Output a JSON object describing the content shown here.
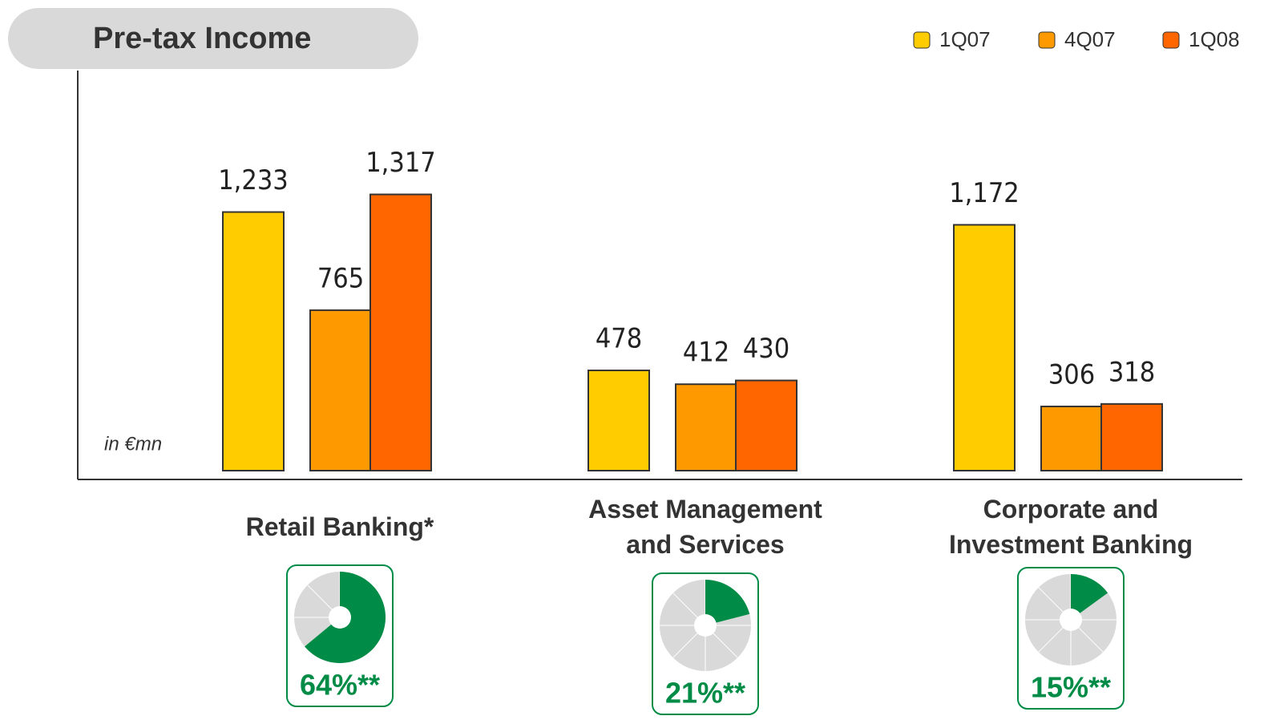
{
  "chart_data": {
    "type": "bar",
    "title": "Pre-tax Income",
    "unit_note": "in €mn",
    "categories": [
      "Retail Banking*",
      "Asset Management and Services",
      "Corporate and Investment Banking"
    ],
    "series": [
      {
        "name": "1Q07",
        "color": "#ffcc00",
        "values": [
          1233,
          478,
          1172
        ],
        "value_labels": [
          "1,233",
          "478",
          "1,172"
        ]
      },
      {
        "name": "4Q07",
        "color": "#ff9900",
        "values": [
          765,
          412,
          306
        ],
        "value_labels": [
          "765",
          "412",
          "306"
        ]
      },
      {
        "name": "1Q08",
        "color": "#ff6600",
        "values": [
          1317,
          430,
          318
        ],
        "value_labels": [
          "1,317",
          "430",
          "318"
        ]
      }
    ],
    "ylim": [
      0,
      1900
    ],
    "legend": "top-right",
    "shares": {
      "type": "pie",
      "color": "#008c46",
      "values": [
        64,
        21,
        15
      ],
      "value_labels": [
        "64%**",
        "21%**",
        "15%**"
      ]
    }
  }
}
